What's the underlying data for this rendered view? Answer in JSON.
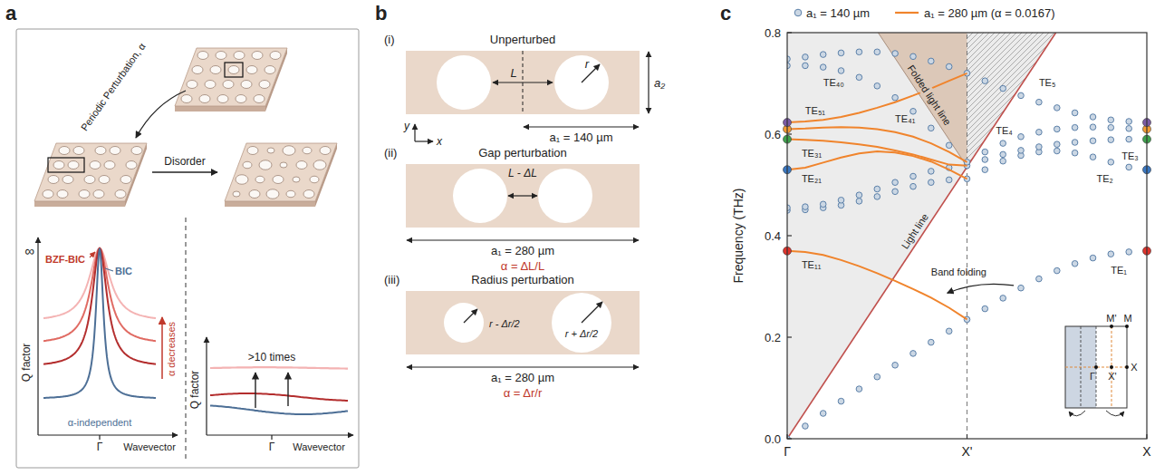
{
  "panel_a": {
    "label": "a",
    "perturbation": "Periodic Perturbation, α",
    "disorder": "Disorder",
    "left_plot": {
      "y_label": "Q factor",
      "x_label": "Wavevector",
      "x_tick": "Γ",
      "infinity": "∞",
      "bzf_bic": "BZF-BIC",
      "bic": "BIC",
      "trend": "α decreases",
      "baseline": "α-independent"
    },
    "right_plot": {
      "y_label": "Q factor",
      "x_label": "Wavevector",
      "x_tick": "Γ",
      "gain": ">10 times"
    }
  },
  "panel_b": {
    "label": "b",
    "cells": [
      {
        "tag": "(i)",
        "title": "Unperturbed",
        "period": "a₁ = 140 µm",
        "gap": "L",
        "radius": "r",
        "height": "a₂",
        "axis_y": "y",
        "axis_x": "x"
      },
      {
        "tag": "(ii)",
        "title": "Gap perturbation",
        "period": "a₁ = 280 µm",
        "gap": "L - ΔL",
        "alpha": "α = ΔL/L"
      },
      {
        "tag": "(iii)",
        "title": "Radius perturbation",
        "period": "a₁ = 280 µm",
        "radius_small": "r - Δr/2",
        "radius_large": "r + Δr/2",
        "alpha": "α = Δr/r"
      }
    ]
  },
  "panel_c": {
    "label": "c",
    "inset_labels": [
      "M'",
      "M",
      "Γ",
      "X'",
      "X"
    ]
  },
  "chart_data": {
    "type": "line",
    "y_label": "Frequency (THz)",
    "xlim": [
      0,
      1
    ],
    "ylim": [
      0,
      0.8
    ],
    "xticks": [
      {
        "value": 0,
        "label": "Γ"
      },
      {
        "value": 0.5,
        "label": "X'"
      },
      {
        "value": 1,
        "label": "X"
      }
    ],
    "yticks": [
      {
        "value": 0,
        "label": "0.0"
      },
      {
        "value": 0.2,
        "label": "0.2"
      },
      {
        "value": 0.4,
        "label": "0.4"
      },
      {
        "value": 0.6,
        "label": "0.6"
      },
      {
        "value": 0.8,
        "label": "0.8"
      }
    ],
    "grid": false,
    "legend": "top",
    "series": [
      {
        "name": "a₁ = 140 µm",
        "type": "scatter",
        "color": "#5a7fa8",
        "marker": "circle",
        "line_style": "none",
        "colors": [
          "#e0342c",
          "#3a78c2",
          "#3fa34d",
          "#f39c34",
          "#7d5ba6"
        ],
        "x": [
          0,
          0.05,
          0.1,
          0.15,
          0.2,
          0.25,
          0.3,
          0.35,
          0.4,
          0.45,
          0.5,
          0.55,
          0.6,
          0.65,
          0.7,
          0.75,
          0.8,
          0.85,
          0.9,
          0.95,
          1
        ],
        "bands": [
          {
            "label": "TE₁",
            "values": [
              0,
              0.025,
              0.05,
              0.074,
              0.098,
              0.122,
              0.145,
              0.168,
              0.19,
              0.212,
              0.235,
              0.256,
              0.277,
              0.297,
              0.315,
              0.331,
              0.345,
              0.356,
              0.364,
              0.368,
              0.37
            ]
          },
          {
            "label": "TE₂",
            "values": [
              0.45,
              0.451,
              0.455,
              0.46,
              0.468,
              0.477,
              0.487,
              0.497,
              0.505,
              0.51,
              0.512,
              0.53,
              0.547,
              0.558,
              0.565,
              0.567,
              0.563,
              0.555,
              0.545,
              0.535,
              0.53
            ]
          },
          {
            "label": "TE₃",
            "values": [
              0.455,
              0.457,
              0.462,
              0.47,
              0.48,
              0.492,
              0.505,
              0.517,
              0.527,
              0.534,
              0.538,
              0.55,
              0.56,
              0.568,
              0.575,
              0.58,
              0.584,
              0.587,
              0.589,
              0.59,
              0.59
            ]
          },
          {
            "label": "TE₄",
            "values": [
              0.735,
              0.735,
              0.732,
              0.725,
              0.712,
              0.695,
              0.672,
              0.645,
              0.612,
              0.578,
              0.545,
              0.565,
              0.582,
              0.595,
              0.604,
              0.61,
              0.613,
              0.614,
              0.613,
              0.611,
              0.61
            ]
          },
          {
            "label": "TE₅",
            "values": [
              0.748,
              0.752,
              0.757,
              0.76,
              0.762,
              0.762,
              0.759,
              0.753,
              0.744,
              0.733,
              0.72,
              0.705,
              0.69,
              0.676,
              0.663,
              0.652,
              0.642,
              0.634,
              0.628,
              0.625,
              0.623
            ]
          }
        ]
      },
      {
        "name": "a₁ = 280 µm (α = 0.0167)",
        "type": "line",
        "color": "#f0842c",
        "marker": "none",
        "line_style": "solid",
        "colors": [
          "#e0342c",
          "#3a78c2",
          "#3fa34d",
          "#f39c34",
          "#7d5ba6"
        ],
        "x": [
          0,
          0.05,
          0.1,
          0.15,
          0.2,
          0.25,
          0.3,
          0.35,
          0.4,
          0.45,
          0.5
        ],
        "bands": [
          {
            "label": "TE₁₁",
            "values": [
              0.37,
              0.368,
              0.362,
              0.352,
              0.34,
              0.326,
              0.311,
              0.295,
              0.278,
              0.258,
              0.235
            ]
          },
          {
            "label": "TE₂₁",
            "values": [
              0.53,
              0.534,
              0.544,
              0.554,
              0.562,
              0.566,
              0.564,
              0.557,
              0.546,
              0.53,
              0.512
            ]
          },
          {
            "label": "TE₃₁",
            "values": [
              0.59,
              0.589,
              0.587,
              0.584,
              0.58,
              0.575,
              0.568,
              0.56,
              0.55,
              0.54,
              0.538
            ]
          },
          {
            "label": "TE₄₁",
            "values": [
              0.61,
              0.611,
              0.613,
              0.614,
              0.613,
              0.61,
              0.604,
              0.595,
              0.582,
              0.565,
              0.545
            ]
          },
          {
            "label": "TE₅₁",
            "values": [
              0.623,
              0.625,
              0.628,
              0.634,
              0.642,
              0.652,
              0.663,
              0.676,
              0.69,
              0.705,
              0.72
            ]
          }
        ]
      }
    ],
    "light_line": {
      "label": "Light line",
      "color": "#c0504d",
      "x": [
        0,
        0.747
      ],
      "values": [
        0,
        0.8
      ]
    },
    "folded_light_line": {
      "label": "Folded light line",
      "color": "#a88f7e",
      "x": [
        0.5,
        0.253
      ],
      "values": [
        0.536,
        0.8
      ]
    },
    "annotations": [
      "TE₄₀",
      "Band folding"
    ]
  }
}
